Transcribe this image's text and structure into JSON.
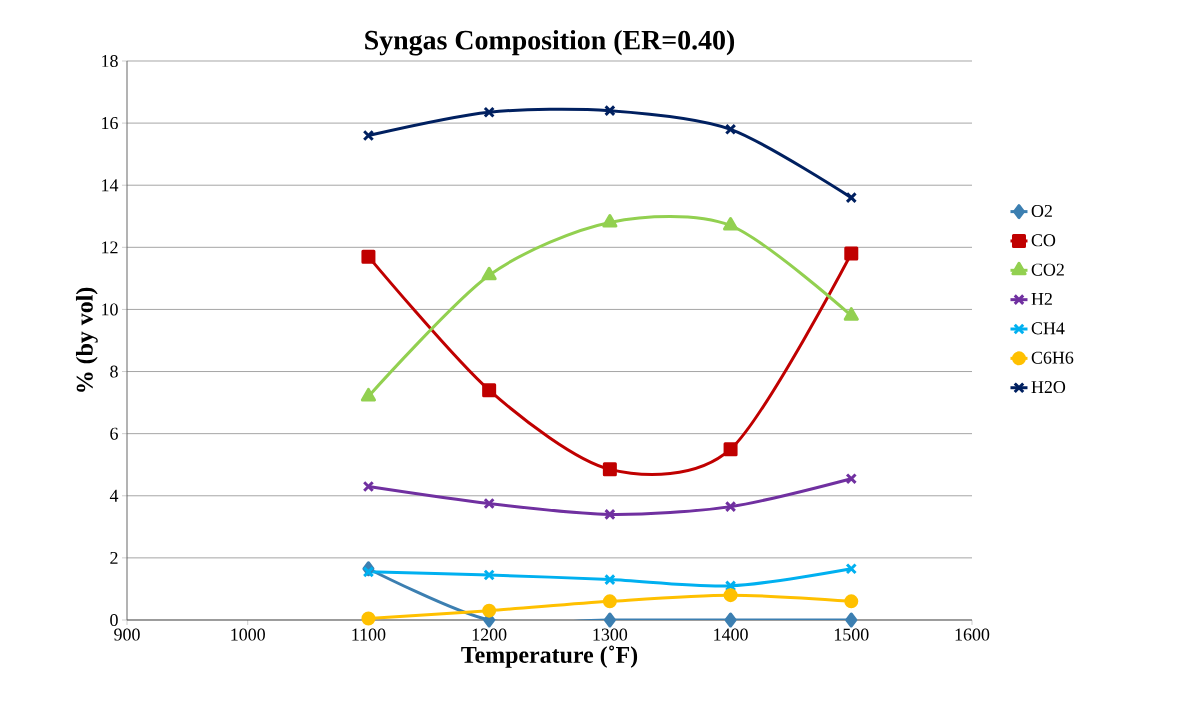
{
  "chart_data": {
    "type": "line",
    "title": "Syngas Composition (ER=0.40)",
    "xlabel": "Temperature (˚F)",
    "ylabel": "% (by vol)",
    "x": [
      1100,
      1200,
      1300,
      1400,
      1500
    ],
    "series": [
      {
        "name": "O2",
        "color": "#3c7fb1",
        "marker": "diamond",
        "values": [
          1.65,
          0,
          0,
          0,
          0
        ]
      },
      {
        "name": "CO",
        "color": "#c00000",
        "marker": "square",
        "values": [
          11.7,
          7.4,
          4.85,
          5.5,
          11.8
        ]
      },
      {
        "name": "CO2",
        "color": "#92d050",
        "marker": "triangle",
        "values": [
          7.2,
          11.1,
          12.8,
          12.7,
          9.8
        ]
      },
      {
        "name": "H2",
        "color": "#7030a0",
        "marker": "cross",
        "values": [
          4.3,
          3.75,
          3.4,
          3.65,
          4.55
        ]
      },
      {
        "name": "CH4",
        "color": "#00b0f0",
        "marker": "cross",
        "values": [
          1.55,
          1.45,
          1.3,
          1.1,
          1.65
        ]
      },
      {
        "name": "C6H6",
        "color": "#ffc000",
        "marker": "circle",
        "values": [
          0.05,
          0.3,
          0.6,
          0.8,
          0.6
        ]
      },
      {
        "name": "H2O",
        "color": "#002060",
        "marker": "cross",
        "values": [
          15.6,
          16.35,
          16.4,
          15.8,
          13.6
        ]
      }
    ],
    "xlim": [
      900,
      1600
    ],
    "xticks": [
      900,
      1000,
      1100,
      1200,
      1300,
      1400,
      1500,
      1600
    ],
    "ylim": [
      0,
      18
    ],
    "yticks": [
      0,
      2,
      4,
      6,
      8,
      10,
      12,
      14,
      16,
      18
    ],
    "grid": "y",
    "legend": "right"
  }
}
